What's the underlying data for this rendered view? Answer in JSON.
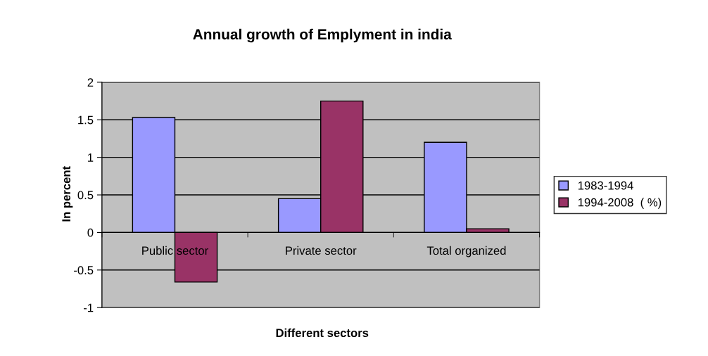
{
  "chart_data": {
    "type": "bar",
    "title": "Annual growth of Emplyment in india",
    "xlabel": "Different sectors",
    "ylabel": "In percent",
    "categories": [
      "Public sector",
      "Private sector",
      "Total organized"
    ],
    "series": [
      {
        "name": "1983-1994",
        "color": "#9999ff",
        "values": [
          1.53,
          0.45,
          1.2
        ]
      },
      {
        "name": "1994-2008  ( %)",
        "color": "#993366",
        "values": [
          -0.66,
          1.75,
          0.05
        ]
      }
    ],
    "ylim": [
      -1,
      2
    ],
    "yticks": [
      -1,
      -0.5,
      0,
      0.5,
      1,
      1.5,
      2
    ],
    "grid": "y",
    "legend": "right"
  }
}
